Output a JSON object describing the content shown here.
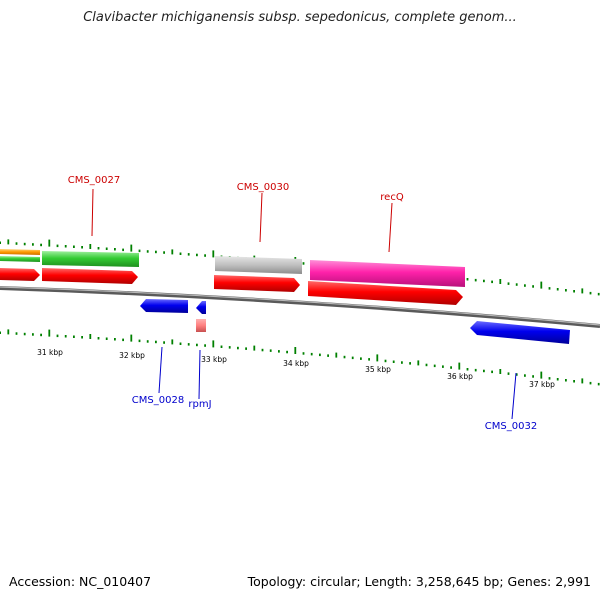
{
  "title": "Clavibacter michiganensis subsp. sepedonicus, complete genom...",
  "footer": {
    "accession": "Accession: NC_010407",
    "stats": "Topology: circular; Length: 3,258,645 bp; Genes: 2,991"
  },
  "colors": {
    "forward_label": "#cc0000",
    "reverse_label": "#0000cc",
    "backbone": "#808080",
    "tick": "#008000"
  },
  "scale": {
    "unit": "kbp",
    "labels": [
      "31 kbp",
      "32 kbp",
      "33 kbp",
      "34 kbp",
      "35 kbp",
      "36 kbp",
      "37 kbp"
    ]
  },
  "genes": {
    "forward_labels": [
      "CMS_0027",
      "CMS_0030",
      "recQ"
    ],
    "reverse_labels": [
      "CMS_0028",
      "rpmJ",
      "CMS_0032"
    ]
  }
}
